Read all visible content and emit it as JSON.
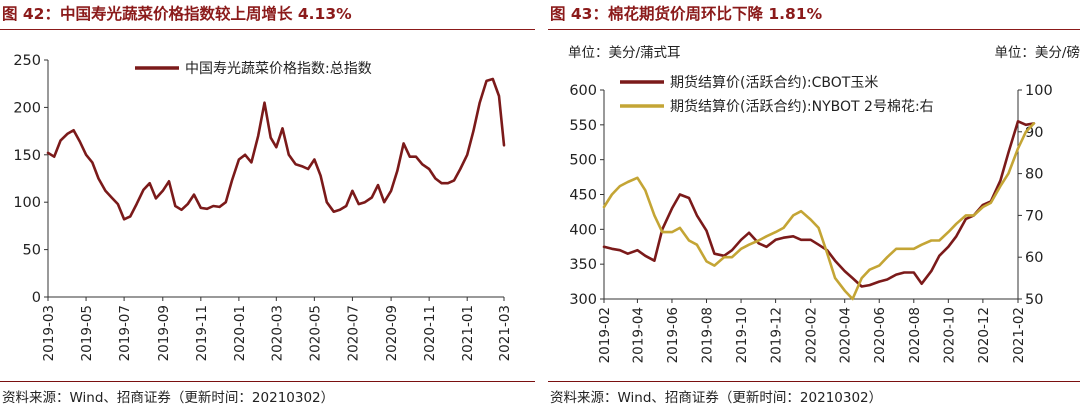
{
  "left": {
    "title": "图 42：中国寿光蔬菜价格指数较上周增长 4.13%",
    "source": "资料来源：Wind、招商证券（更新时间：20210302）",
    "chart_data": {
      "type": "line",
      "series": [
        {
          "name": "中国寿光蔬菜价格指数:总指数",
          "color": "#7b1a1a",
          "x": [
            "2019-03-01",
            "2019-03-11",
            "2019-03-21",
            "2019-04-01",
            "2019-04-11",
            "2019-04-21",
            "2019-05-01",
            "2019-05-11",
            "2019-05-21",
            "2019-06-01",
            "2019-06-11",
            "2019-06-21",
            "2019-07-01",
            "2019-07-11",
            "2019-07-21",
            "2019-08-01",
            "2019-08-11",
            "2019-08-21",
            "2019-09-01",
            "2019-09-11",
            "2019-09-21",
            "2019-10-01",
            "2019-10-11",
            "2019-10-21",
            "2019-11-01",
            "2019-11-11",
            "2019-11-21",
            "2019-12-01",
            "2019-12-11",
            "2019-12-21",
            "2020-01-01",
            "2020-01-11",
            "2020-01-21",
            "2020-02-01",
            "2020-02-11",
            "2020-02-21",
            "2020-03-01",
            "2020-03-11",
            "2020-03-21",
            "2020-04-01",
            "2020-04-11",
            "2020-04-21",
            "2020-05-01",
            "2020-05-11",
            "2020-05-21",
            "2020-06-01",
            "2020-06-11",
            "2020-06-21",
            "2020-07-01",
            "2020-07-11",
            "2020-07-21",
            "2020-08-01",
            "2020-08-11",
            "2020-08-21",
            "2020-09-01",
            "2020-09-11",
            "2020-09-21",
            "2020-10-01",
            "2020-10-11",
            "2020-10-21",
            "2020-11-01",
            "2020-11-11",
            "2020-11-21",
            "2020-12-01",
            "2020-12-11",
            "2020-12-21",
            "2021-01-01",
            "2021-01-11",
            "2021-01-21",
            "2021-02-01",
            "2021-02-11",
            "2021-02-21",
            "2021-03-01"
          ],
          "y": [
            152,
            148,
            165,
            172,
            176,
            164,
            150,
            142,
            125,
            112,
            105,
            98,
            82,
            85,
            98,
            113,
            120,
            104,
            112,
            122,
            96,
            92,
            98,
            108,
            94,
            93,
            96,
            95,
            100,
            123,
            145,
            150,
            142,
            170,
            205,
            168,
            158,
            178,
            150,
            140,
            138,
            135,
            145,
            128,
            100,
            90,
            92,
            96,
            112,
            98,
            100,
            105,
            118,
            100,
            112,
            133,
            162,
            148,
            148,
            140,
            135,
            125,
            120,
            120,
            123,
            135,
            150,
            175,
            205,
            228,
            230,
            212,
            160
          ]
        }
      ],
      "ylim": [
        0,
        250
      ],
      "yticks": [
        0,
        50,
        100,
        150,
        200,
        250
      ],
      "xticks": [
        "2019-03",
        "2019-05",
        "2019-07",
        "2019-09",
        "2019-11",
        "2020-01",
        "2020-03",
        "2020-05",
        "2020-07",
        "2020-09",
        "2020-11",
        "2021-01",
        "2021-03"
      ],
      "legend": "top-center",
      "grid": false
    }
  },
  "right": {
    "title": "图 43：棉花期货价周环比下降 1.81%",
    "source": "资料来源：Wind、招商证券（更新时间：20210302）",
    "unit_left": "单位：美分/蒲式耳",
    "unit_right": "单位：美分/磅",
    "chart_data": {
      "type": "line",
      "ylim_left": [
        300,
        600
      ],
      "yticks_left": [
        300,
        350,
        400,
        450,
        500,
        550,
        600
      ],
      "ylim_right": [
        50,
        100
      ],
      "yticks_right": [
        50,
        60,
        70,
        80,
        90,
        100
      ],
      "xticks": [
        "2019-02",
        "2019-04",
        "2019-06",
        "2019-08",
        "2019-10",
        "2019-12",
        "2020-02",
        "2020-04",
        "2020-06",
        "2020-08",
        "2020-10",
        "2020-12",
        "2021-02"
      ],
      "legend": "top-left",
      "grid": false,
      "series": [
        {
          "name": "期货结算价(活跃合约):CBOT玉米",
          "axis": "left",
          "color": "#7b1a1a",
          "x": [
            "2019-02-01",
            "2019-02-15",
            "2019-03-01",
            "2019-03-15",
            "2019-04-01",
            "2019-04-15",
            "2019-05-01",
            "2019-05-15",
            "2019-06-01",
            "2019-06-15",
            "2019-07-01",
            "2019-07-15",
            "2019-08-01",
            "2019-08-15",
            "2019-09-01",
            "2019-09-15",
            "2019-10-01",
            "2019-10-15",
            "2019-11-01",
            "2019-11-15",
            "2019-12-01",
            "2019-12-15",
            "2020-01-01",
            "2020-01-15",
            "2020-02-01",
            "2020-02-15",
            "2020-03-01",
            "2020-03-15",
            "2020-04-01",
            "2020-04-15",
            "2020-05-01",
            "2020-05-15",
            "2020-06-01",
            "2020-06-15",
            "2020-07-01",
            "2020-07-15",
            "2020-08-01",
            "2020-08-15",
            "2020-09-01",
            "2020-09-15",
            "2020-10-01",
            "2020-10-15",
            "2020-11-01",
            "2020-11-15",
            "2020-12-01",
            "2020-12-15",
            "2021-01-01",
            "2021-01-15",
            "2021-02-01",
            "2021-02-15",
            "2021-03-01"
          ],
          "y": [
            375,
            372,
            370,
            365,
            370,
            362,
            355,
            400,
            430,
            450,
            445,
            420,
            398,
            365,
            362,
            370,
            385,
            395,
            380,
            375,
            385,
            388,
            390,
            385,
            385,
            378,
            370,
            355,
            340,
            330,
            318,
            320,
            325,
            328,
            335,
            338,
            338,
            322,
            340,
            362,
            375,
            390,
            415,
            420,
            435,
            440,
            470,
            510,
            555,
            550,
            552
          ]
        },
        {
          "name": "期货结算价(活跃合约):NYBOT 2号棉花:右",
          "axis": "right",
          "color": "#c4a535",
          "x": [
            "2019-02-01",
            "2019-02-15",
            "2019-03-01",
            "2019-03-15",
            "2019-04-01",
            "2019-04-15",
            "2019-05-01",
            "2019-05-15",
            "2019-06-01",
            "2019-06-15",
            "2019-07-01",
            "2019-07-15",
            "2019-08-01",
            "2019-08-15",
            "2019-09-01",
            "2019-09-15",
            "2019-10-01",
            "2019-10-15",
            "2019-11-01",
            "2019-11-15",
            "2019-12-01",
            "2019-12-15",
            "2020-01-01",
            "2020-01-15",
            "2020-02-01",
            "2020-02-15",
            "2020-03-01",
            "2020-03-15",
            "2020-04-01",
            "2020-04-15",
            "2020-05-01",
            "2020-05-15",
            "2020-06-01",
            "2020-06-15",
            "2020-07-01",
            "2020-07-15",
            "2020-08-01",
            "2020-08-15",
            "2020-09-01",
            "2020-09-15",
            "2020-10-01",
            "2020-10-15",
            "2020-11-01",
            "2020-11-15",
            "2020-12-01",
            "2020-12-15",
            "2021-01-01",
            "2021-01-15",
            "2021-02-01",
            "2021-02-15",
            "2021-03-01"
          ],
          "y": [
            72,
            75,
            77,
            78,
            79,
            76,
            70,
            66,
            66,
            67,
            64,
            63,
            59,
            58,
            60,
            60,
            62,
            63,
            64,
            65,
            66,
            67,
            70,
            71,
            69,
            67,
            61,
            55,
            52,
            50,
            55,
            57,
            58,
            60,
            62,
            62,
            62,
            63,
            64,
            64,
            66,
            68,
            70,
            70,
            72,
            73,
            77,
            80,
            86,
            90,
            92
          ]
        }
      ]
    }
  }
}
